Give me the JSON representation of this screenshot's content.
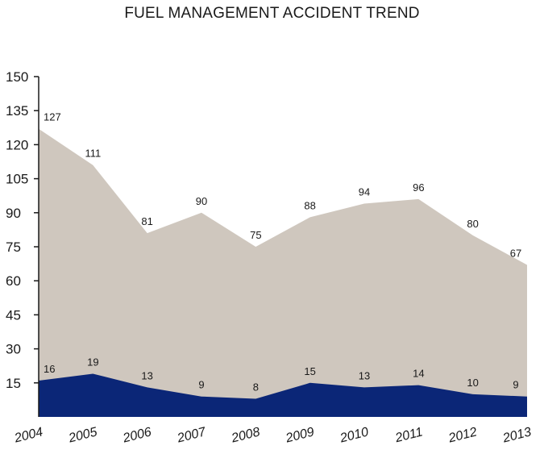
{
  "chart_data": {
    "type": "area",
    "title": "FUEL MANAGEMENT ACCIDENT TREND",
    "xlabel": "",
    "ylabel": "",
    "categories": [
      "2004",
      "2005",
      "2006",
      "2007",
      "2008",
      "2009",
      "2010",
      "2011",
      "2012",
      "2013"
    ],
    "yticks": [
      15,
      30,
      45,
      60,
      75,
      90,
      105,
      120,
      135,
      150
    ],
    "ylim": [
      0,
      150
    ],
    "grid": false,
    "series": [
      {
        "values": [
          127,
          111,
          81,
          90,
          75,
          88,
          94,
          96,
          80,
          67
        ],
        "color": "#cfc7be"
      },
      {
        "values": [
          16,
          19,
          13,
          9,
          8,
          15,
          13,
          14,
          10,
          9
        ],
        "color": "#0b2677"
      }
    ]
  }
}
